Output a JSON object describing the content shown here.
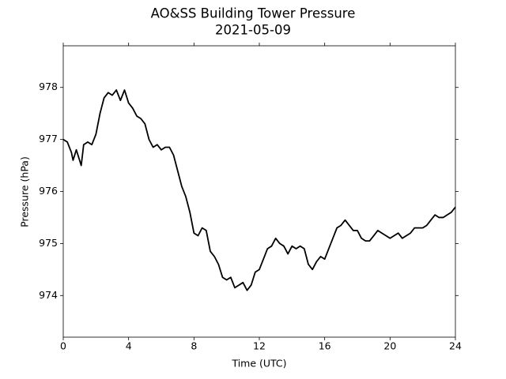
{
  "chart_data": {
    "type": "line",
    "title": "AO&SS Building Tower Pressure",
    "subtitle": "2021-05-09",
    "x_label": "Time (UTC)",
    "y_label": "Pressure (hPa)",
    "xlim": [
      0,
      24
    ],
    "xticks": [
      0,
      4,
      8,
      12,
      16,
      20,
      24
    ],
    "ylim": [
      973.2,
      978.8
    ],
    "yticks": [
      974,
      975,
      976,
      977,
      978
    ],
    "grid": false,
    "x": [
      0,
      0.25,
      0.5,
      0.6,
      0.8,
      1.0,
      1.1,
      1.25,
      1.5,
      1.75,
      2.0,
      2.25,
      2.5,
      2.75,
      3.0,
      3.25,
      3.5,
      3.75,
      4.0,
      4.25,
      4.5,
      4.75,
      5.0,
      5.25,
      5.5,
      5.75,
      6.0,
      6.25,
      6.5,
      6.75,
      7.0,
      7.25,
      7.5,
      7.75,
      8.0,
      8.25,
      8.5,
      8.75,
      9.0,
      9.25,
      9.5,
      9.75,
      10.0,
      10.25,
      10.5,
      10.75,
      11.0,
      11.25,
      11.5,
      11.75,
      12.0,
      12.25,
      12.5,
      12.75,
      13.0,
      13.25,
      13.5,
      13.75,
      14.0,
      14.25,
      14.5,
      14.75,
      15.0,
      15.25,
      15.5,
      15.75,
      16.0,
      16.25,
      16.5,
      16.75,
      17.0,
      17.25,
      17.5,
      17.75,
      18.0,
      18.25,
      18.5,
      18.75,
      19.0,
      19.25,
      19.5,
      19.75,
      20.0,
      20.25,
      20.5,
      20.75,
      21.0,
      21.25,
      21.5,
      21.75,
      22.0,
      22.25,
      22.5,
      22.75,
      23.0,
      23.25,
      23.5,
      23.75,
      24.0
    ],
    "series": [
      {
        "color": "#000000",
        "values": [
          977.0,
          976.95,
          976.75,
          976.6,
          976.8,
          976.6,
          976.5,
          976.9,
          976.95,
          976.9,
          977.1,
          977.5,
          977.8,
          977.9,
          977.85,
          977.95,
          977.75,
          977.95,
          977.7,
          977.6,
          977.45,
          977.4,
          977.3,
          977.0,
          976.85,
          976.9,
          976.8,
          976.85,
          976.85,
          976.7,
          976.4,
          976.1,
          975.9,
          975.6,
          975.2,
          975.15,
          975.3,
          975.25,
          974.85,
          974.75,
          974.6,
          974.35,
          974.3,
          974.35,
          974.15,
          974.2,
          974.25,
          974.1,
          974.2,
          974.45,
          974.5,
          974.7,
          974.9,
          974.95,
          975.1,
          975.0,
          974.95,
          974.8,
          974.95,
          974.9,
          974.95,
          974.9,
          974.6,
          974.5,
          974.65,
          974.75,
          974.7,
          974.9,
          975.1,
          975.3,
          975.35,
          975.45,
          975.35,
          975.25,
          975.25,
          975.1,
          975.05,
          975.05,
          975.15,
          975.25,
          975.2,
          975.15,
          975.1,
          975.15,
          975.2,
          975.1,
          975.15,
          975.2,
          975.3,
          975.3,
          975.3,
          975.35,
          975.45,
          975.55,
          975.5,
          975.5,
          975.55,
          975.6,
          975.7
        ]
      }
    ]
  }
}
